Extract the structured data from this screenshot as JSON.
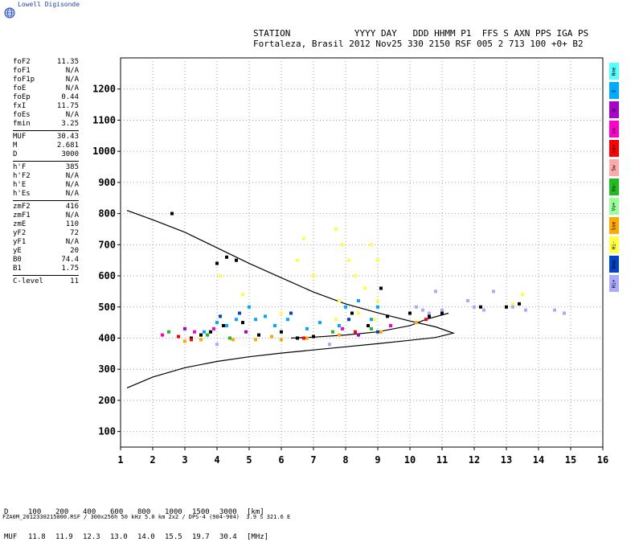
{
  "logo": {
    "text": "Lowell Digisonde",
    "icon": "globe-icon"
  },
  "header": {
    "line1": "STATION            YYYY DAY   DDD HHMM P1  FFS S AXN PPS IGA PS",
    "line2": "Fortaleza, Brasil 2012 Nov25 330 2150 RSF 005 2 713 100 +0+ B2"
  },
  "params": [
    [
      {
        "k": "foF2",
        "v": "11.35"
      },
      {
        "k": "foF1",
        "v": "N/A"
      },
      {
        "k": "foF1p",
        "v": "N/A"
      },
      {
        "k": "foE",
        "v": "N/A"
      },
      {
        "k": "foEp",
        "v": "0.44"
      },
      {
        "k": "fxI",
        "v": "11.75"
      },
      {
        "k": "foEs",
        "v": "N/A"
      },
      {
        "k": "fmin",
        "v": "3.25"
      }
    ],
    [
      {
        "k": "MUF",
        "v": "30.43"
      },
      {
        "k": "M",
        "v": "2.681"
      },
      {
        "k": "D",
        "v": "3000"
      }
    ],
    [
      {
        "k": "h'F",
        "v": "385"
      },
      {
        "k": "h'F2",
        "v": "N/A"
      },
      {
        "k": "h'E",
        "v": "N/A"
      },
      {
        "k": "h'Es",
        "v": "N/A"
      }
    ],
    [
      {
        "k": "zmF2",
        "v": "416"
      },
      {
        "k": "zmF1",
        "v": "N/A"
      },
      {
        "k": "zmE",
        "v": "110"
      },
      {
        "k": "yF2",
        "v": "72"
      },
      {
        "k": "yF1",
        "v": "N/A"
      },
      {
        "k": "yE",
        "v": "20"
      },
      {
        "k": "B0",
        "v": "74.4"
      },
      {
        "k": "B1",
        "v": "1.75"
      }
    ],
    [
      {
        "k": "C-level",
        "v": "11"
      }
    ]
  ],
  "legend": [
    {
      "label": "Nne",
      "color": "#55ffff"
    },
    {
      "label": "E",
      "color": "#00aaff"
    },
    {
      "label": "W",
      "color": "#aa00cc"
    },
    {
      "label": "Vo-",
      "color": "#ff00cc"
    },
    {
      "label": "Vo+",
      "color": "#ff0000"
    },
    {
      "label": "Sw",
      "color": "#ffaaaa"
    },
    {
      "label": "Vo-",
      "color": "#22bb22"
    },
    {
      "label": "Vo+",
      "color": "#99ff99"
    },
    {
      "label": "Sse",
      "color": "#ffaa00"
    },
    {
      "label": "Hi-",
      "color": "#ffff44"
    },
    {
      "label": "Nnw",
      "color": "#0044cc"
    },
    {
      "label": "Hi+",
      "color": "#aaaaff"
    }
  ],
  "mufTable": {
    "dLabel": "D",
    "dValues": [
      "100",
      "200",
      "400",
      "600",
      "800",
      "1000",
      "1500",
      "3000"
    ],
    "dUnit": "[km]",
    "mufLabel": "MUF",
    "mufValues": [
      "11.8",
      "11.9",
      "12.3",
      "13.0",
      "14.0",
      "15.5",
      "19.7",
      "30.4"
    ],
    "mufUnit": "[MHz]"
  },
  "footer": "FZA0M_2012330215000.RSF / 300x256h 50 kHz 5.0 km 2x2 / DPS-4 (904-904)  3.9 S 321.6 E",
  "chart_data": {
    "type": "scatter",
    "title": "",
    "xlabel": "",
    "ylabel": "",
    "xlim": [
      1,
      16
    ],
    "ylim": [
      50,
      1300
    ],
    "xticks": [
      1,
      2,
      3,
      4,
      5,
      6,
      7,
      8,
      9,
      10,
      11,
      12,
      13,
      14,
      15,
      16
    ],
    "yticks": [
      100,
      200,
      300,
      400,
      500,
      600,
      700,
      800,
      900,
      1000,
      1100,
      1200
    ],
    "grid": true,
    "legend_position": "right",
    "series": [
      {
        "kind": "profile",
        "color": "#000000",
        "points": [
          [
            1.2,
            240
          ],
          [
            2,
            275
          ],
          [
            3,
            305
          ],
          [
            4,
            325
          ],
          [
            5,
            340
          ],
          [
            6,
            352
          ],
          [
            7,
            362
          ],
          [
            8,
            372
          ],
          [
            9,
            382
          ],
          [
            10,
            393
          ],
          [
            10.8,
            402
          ],
          [
            11.35,
            416
          ],
          [
            10.8,
            436
          ],
          [
            10,
            455
          ],
          [
            9,
            481
          ],
          [
            8,
            510
          ],
          [
            7,
            548
          ],
          [
            6,
            594
          ],
          [
            5,
            640
          ],
          [
            4,
            690
          ],
          [
            3,
            740
          ],
          [
            2,
            780
          ],
          [
            1.2,
            810
          ]
        ]
      },
      {
        "kind": "trace",
        "color": "#000000",
        "points": [
          [
            6.3,
            400
          ],
          [
            7,
            403
          ],
          [
            8,
            410
          ],
          [
            9,
            420
          ],
          [
            10,
            440
          ],
          [
            10.5,
            460
          ],
          [
            11.2,
            480
          ]
        ]
      },
      {
        "kind": "echo",
        "color": "#ffff44",
        "points": [
          [
            7.7,
            750
          ],
          [
            7.9,
            700
          ],
          [
            8.1,
            650
          ],
          [
            8.3,
            600
          ],
          [
            8.6,
            560
          ],
          [
            8.8,
            700
          ],
          [
            9.0,
            650
          ],
          [
            7.8,
            520
          ],
          [
            8.4,
            480
          ],
          [
            6.7,
            720
          ],
          [
            6.5,
            650
          ],
          [
            7.0,
            600
          ],
          [
            9.0,
            520
          ],
          [
            7.7,
            460
          ],
          [
            8.9,
            460
          ],
          [
            4.8,
            540
          ],
          [
            4.1,
            600
          ],
          [
            13.2,
            510
          ],
          [
            13.5,
            540
          ],
          [
            6.0,
            480
          ]
        ]
      },
      {
        "kind": "echo",
        "color": "#00aaff",
        "points": [
          [
            4.0,
            450
          ],
          [
            4.3,
            440
          ],
          [
            4.6,
            460
          ],
          [
            5.2,
            460
          ],
          [
            5.5,
            470
          ],
          [
            6.2,
            460
          ],
          [
            7.8,
            440
          ],
          [
            8.0,
            500
          ],
          [
            8.4,
            520
          ],
          [
            8.8,
            460
          ],
          [
            9.0,
            500
          ],
          [
            6.8,
            430
          ],
          [
            7.2,
            450
          ],
          [
            3.6,
            420
          ],
          [
            5.0,
            500
          ],
          [
            5.8,
            440
          ]
        ]
      },
      {
        "kind": "echo",
        "color": "#000000",
        "points": [
          [
            3.2,
            400
          ],
          [
            3.5,
            410
          ],
          [
            3.8,
            420
          ],
          [
            4.2,
            440
          ],
          [
            4.8,
            450
          ],
          [
            5.3,
            410
          ],
          [
            6.0,
            420
          ],
          [
            6.5,
            400
          ],
          [
            7.0,
            405
          ],
          [
            8.2,
            480
          ],
          [
            8.7,
            440
          ],
          [
            9.3,
            470
          ],
          [
            10.0,
            480
          ],
          [
            10.6,
            470
          ],
          [
            11.0,
            480
          ],
          [
            12.2,
            500
          ],
          [
            13.0,
            500
          ],
          [
            13.4,
            510
          ],
          [
            4.3,
            660
          ],
          [
            4.6,
            650
          ],
          [
            4.0,
            640
          ],
          [
            2.6,
            800
          ],
          [
            9.1,
            560
          ]
        ]
      },
      {
        "kind": "echo",
        "color": "#aaaaff",
        "points": [
          [
            10.2,
            500
          ],
          [
            10.4,
            490
          ],
          [
            10.6,
            480
          ],
          [
            11.0,
            490
          ],
          [
            12.0,
            500
          ],
          [
            12.3,
            490
          ],
          [
            13.2,
            500
          ],
          [
            13.6,
            490
          ],
          [
            14.5,
            490
          ],
          [
            11.8,
            520
          ],
          [
            10.8,
            550
          ],
          [
            4.0,
            380
          ],
          [
            7.5,
            380
          ],
          [
            12.6,
            550
          ],
          [
            14.8,
            480
          ]
        ]
      },
      {
        "kind": "echo",
        "color": "#ffaa00",
        "points": [
          [
            3.0,
            390
          ],
          [
            3.5,
            395
          ],
          [
            4.5,
            395
          ],
          [
            5.2,
            395
          ],
          [
            5.7,
            405
          ],
          [
            6.0,
            395
          ],
          [
            6.8,
            400
          ],
          [
            7.8,
            410
          ],
          [
            9.1,
            420
          ],
          [
            10.2,
            450
          ]
        ]
      },
      {
        "kind": "echo",
        "color": "#ff00cc",
        "points": [
          [
            2.3,
            410
          ],
          [
            3.3,
            420
          ],
          [
            3.9,
            430
          ],
          [
            7.9,
            430
          ],
          [
            9.4,
            440
          ]
        ]
      },
      {
        "kind": "echo",
        "color": "#ff0000",
        "points": [
          [
            2.8,
            405
          ],
          [
            3.2,
            395
          ],
          [
            6.7,
            400
          ],
          [
            8.3,
            420
          ],
          [
            10.5,
            460
          ]
        ]
      },
      {
        "kind": "echo",
        "color": "#22bb22",
        "points": [
          [
            2.5,
            420
          ],
          [
            3.7,
            410
          ],
          [
            4.4,
            400
          ],
          [
            7.6,
            420
          ],
          [
            8.8,
            430
          ]
        ]
      },
      {
        "kind": "echo",
        "color": "#0044cc",
        "points": [
          [
            4.1,
            470
          ],
          [
            4.7,
            480
          ],
          [
            6.3,
            480
          ],
          [
            8.1,
            460
          ],
          [
            9.0,
            420
          ]
        ]
      },
      {
        "kind": "echo",
        "color": "#aa00cc",
        "points": [
          [
            3.0,
            430
          ],
          [
            4.9,
            420
          ],
          [
            8.4,
            410
          ]
        ]
      }
    ]
  }
}
